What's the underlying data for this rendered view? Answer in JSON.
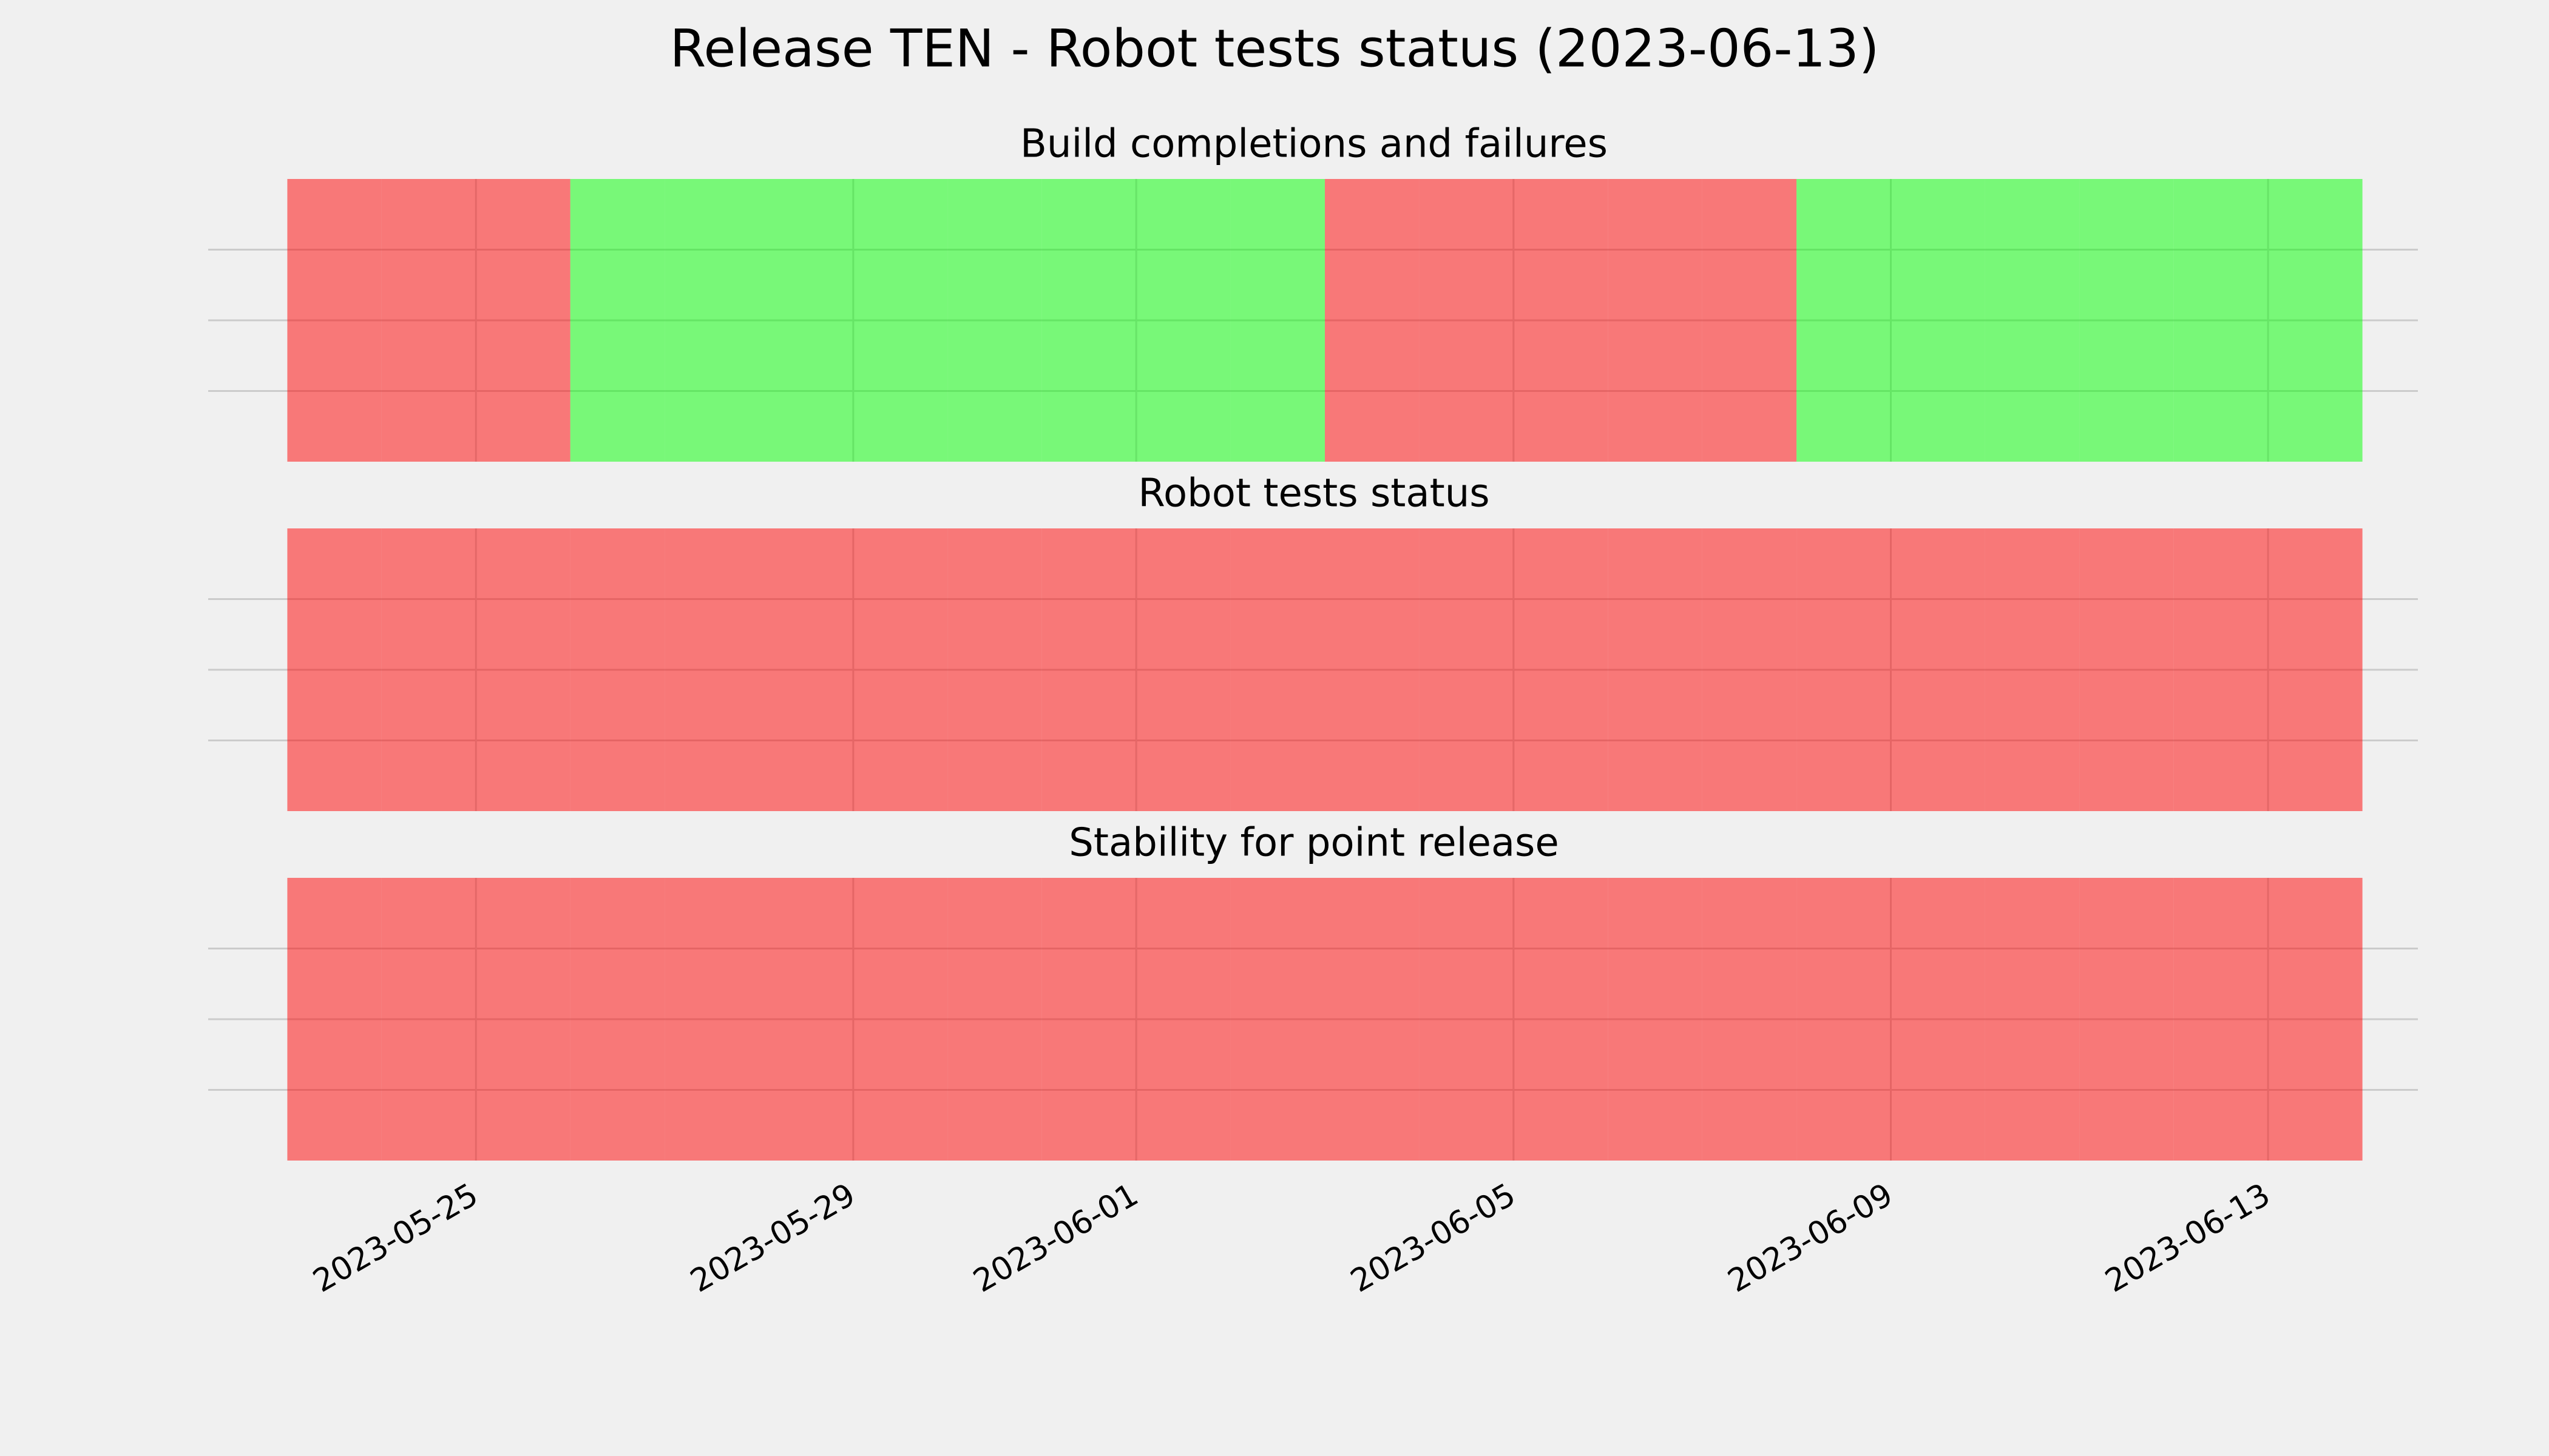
{
  "title": "Release TEN - Robot tests status (2023-06-13)",
  "chart_data": [
    {
      "type": "status-timeline",
      "title": "Build completions and failures",
      "x": [
        "2023-05-23",
        "2023-05-24",
        "2023-05-25",
        "2023-05-26",
        "2023-05-27",
        "2023-05-28",
        "2023-05-29",
        "2023-05-30",
        "2023-05-31",
        "2023-06-01",
        "2023-06-02",
        "2023-06-03",
        "2023-06-04",
        "2023-06-05",
        "2023-06-06",
        "2023-06-07",
        "2023-06-08",
        "2023-06-09",
        "2023-06-10",
        "2023-06-11",
        "2023-06-12",
        "2023-06-13"
      ],
      "colors": [
        "red",
        "red",
        "red",
        "lime",
        "lime",
        "lime",
        "lime",
        "lime",
        "lime",
        "lime",
        "lime",
        "red",
        "red",
        "red",
        "red",
        "red",
        "lime",
        "lime",
        "lime",
        "lime",
        "lime",
        "lime"
      ],
      "alpha": 0.5,
      "xlim": [
        "2023-05-22",
        "2023-06-15"
      ],
      "xticks": [
        "2023-05-25",
        "2023-05-29",
        "2023-06-01",
        "2023-06-05",
        "2023-06-09",
        "2023-06-13"
      ],
      "ylim": [
        0,
        1
      ],
      "yticks": [
        0.25,
        0.5,
        0.75
      ],
      "grid": true
    },
    {
      "type": "status-timeline",
      "title": "Robot tests status",
      "x": [
        "2023-05-23",
        "2023-05-24",
        "2023-05-25",
        "2023-05-26",
        "2023-05-27",
        "2023-05-28",
        "2023-05-29",
        "2023-05-30",
        "2023-05-31",
        "2023-06-01",
        "2023-06-02",
        "2023-06-03",
        "2023-06-04",
        "2023-06-05",
        "2023-06-06",
        "2023-06-07",
        "2023-06-08",
        "2023-06-09",
        "2023-06-10",
        "2023-06-11",
        "2023-06-12",
        "2023-06-13"
      ],
      "colors": [
        "red",
        "red",
        "red",
        "red",
        "red",
        "red",
        "red",
        "red",
        "red",
        "red",
        "red",
        "red",
        "red",
        "red",
        "red",
        "red",
        "red",
        "red",
        "red",
        "red",
        "red",
        "red"
      ],
      "alpha": 0.5,
      "xlim": [
        "2023-05-22",
        "2023-06-15"
      ],
      "xticks": [
        "2023-05-25",
        "2023-05-29",
        "2023-06-01",
        "2023-06-05",
        "2023-06-09",
        "2023-06-13"
      ],
      "ylim": [
        0,
        1
      ],
      "yticks": [
        0.25,
        0.5,
        0.75
      ],
      "grid": true
    },
    {
      "type": "status-timeline",
      "title": "Stability for point release",
      "x": [
        "2023-05-23",
        "2023-05-24",
        "2023-05-25",
        "2023-05-26",
        "2023-05-27",
        "2023-05-28",
        "2023-05-29",
        "2023-05-30",
        "2023-05-31",
        "2023-06-01",
        "2023-06-02",
        "2023-06-03",
        "2023-06-04",
        "2023-06-05",
        "2023-06-06",
        "2023-06-07",
        "2023-06-08",
        "2023-06-09",
        "2023-06-10",
        "2023-06-11",
        "2023-06-12",
        "2023-06-13"
      ],
      "colors": [
        "red",
        "red",
        "red",
        "red",
        "red",
        "red",
        "red",
        "red",
        "red",
        "red",
        "red",
        "red",
        "red",
        "red",
        "red",
        "red",
        "red",
        "red",
        "red",
        "red",
        "red",
        "red"
      ],
      "alpha": 0.5,
      "xlim": [
        "2023-05-22",
        "2023-06-15"
      ],
      "xticks": [
        "2023-05-25",
        "2023-05-29",
        "2023-06-01",
        "2023-06-05",
        "2023-06-09",
        "2023-06-13"
      ],
      "ylim": [
        0,
        1
      ],
      "yticks": [
        0.25,
        0.5,
        0.75
      ],
      "grid": true
    }
  ]
}
